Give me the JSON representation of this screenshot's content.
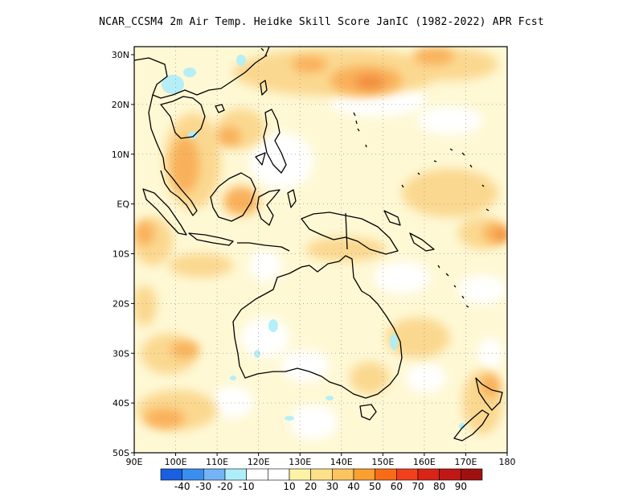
{
  "title": "NCAR_CCSM4  2m Air Temp. Heidke Skill Score JanIC (1982-2022) APR Fcst",
  "x_ticks": [
    "90E",
    "100E",
    "110E",
    "120E",
    "130E",
    "140E",
    "150E",
    "160E",
    "170E",
    "180"
  ],
  "y_ticks": [
    "30N",
    "20N",
    "10N",
    "EQ",
    "10S",
    "20S",
    "30S",
    "40S",
    "50S"
  ],
  "colorbar": {
    "colors": [
      "#1a5fe0",
      "#3a8ef0",
      "#74b4f5",
      "#aeeefa",
      "#ffffff",
      "#ffffff",
      "#fdf3a6",
      "#fde08a",
      "#fbc460",
      "#f9a030",
      "#f86c18",
      "#f2401c",
      "#d92418",
      "#c01814",
      "#a01010"
    ],
    "labels": [
      "-40",
      "-30",
      "-20",
      "-10",
      "10",
      "20",
      "30",
      "40",
      "50",
      "60",
      "70",
      "80",
      "90"
    ]
  },
  "palette": {
    "background": "#ffffff",
    "pale_yellow": "#fdf2b0",
    "light_orange": "#fbd890",
    "orange": "#f9b05a",
    "dark_orange": "#f08a3a",
    "light_blue": "#aeeefa",
    "coast": "#000000"
  }
}
